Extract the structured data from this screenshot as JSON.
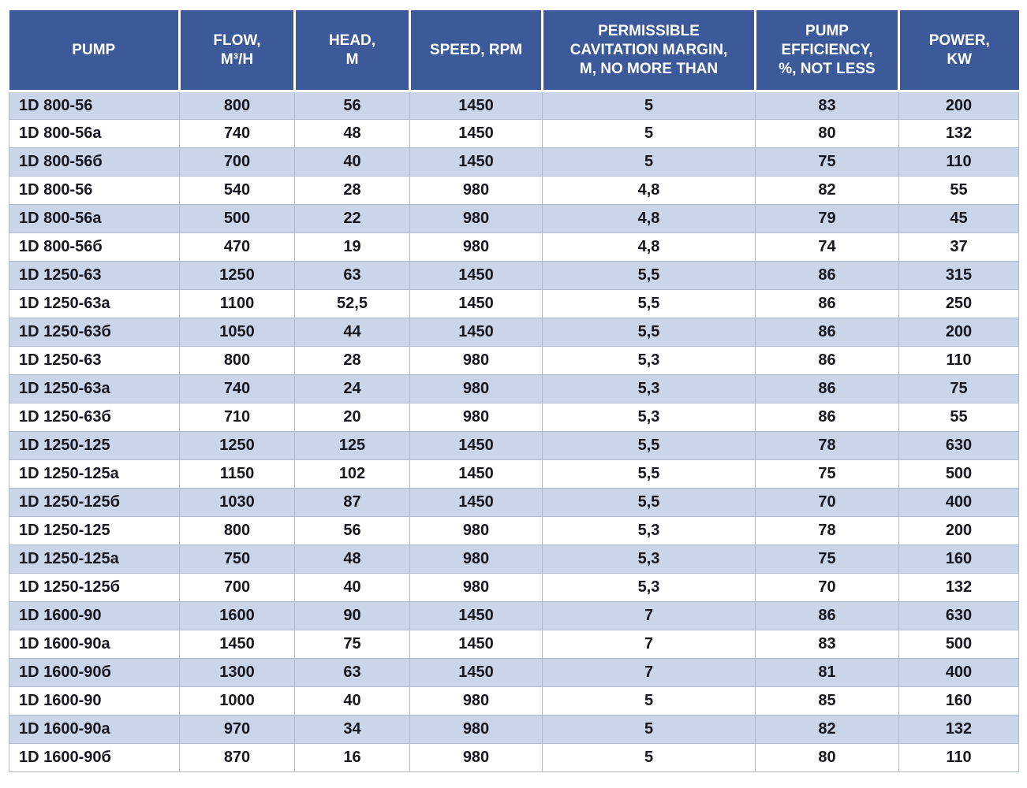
{
  "colors": {
    "header_bg": "#3C5A99",
    "header_text": "#FFFFFF",
    "row_alt_bg": "#CBD5E9",
    "row_bg": "#FFFFFF",
    "body_text": "#161620",
    "grid_line": "#AEBAD2"
  },
  "table": {
    "columns": [
      {
        "key": "pump",
        "label": "PUMP"
      },
      {
        "key": "flow",
        "label": "FLOW,\nM³/H"
      },
      {
        "key": "head",
        "label": "HEAD,\nM"
      },
      {
        "key": "speed",
        "label": "SPEED, RPM"
      },
      {
        "key": "cavitation",
        "label": "PERMISSIBLE\nCAVITATION MARGIN,\nM, NO MORE THAN"
      },
      {
        "key": "efficiency",
        "label": "PUMP\nEFFICIENCY,\n%, NOT LESS"
      },
      {
        "key": "power",
        "label": "POWER,\nKW"
      }
    ],
    "rows": [
      [
        "1D 800-56",
        "800",
        "56",
        "1450",
        "5",
        "83",
        "200"
      ],
      [
        "1D 800-56a",
        "740",
        "48",
        "1450",
        "5",
        "80",
        "132"
      ],
      [
        "1D 800-56б",
        "700",
        "40",
        "1450",
        "5",
        "75",
        "110"
      ],
      [
        "1D 800-56",
        "540",
        "28",
        "980",
        "4,8",
        "82",
        "55"
      ],
      [
        "1D 800-56a",
        "500",
        "22",
        "980",
        "4,8",
        "79",
        "45"
      ],
      [
        "1D 800-56б",
        "470",
        "19",
        "980",
        "4,8",
        "74",
        "37"
      ],
      [
        "1D 1250-63",
        "1250",
        "63",
        "1450",
        "5,5",
        "86",
        "315"
      ],
      [
        "1D 1250-63a",
        "1100",
        "52,5",
        "1450",
        "5,5",
        "86",
        "250"
      ],
      [
        "1D 1250-63б",
        "1050",
        "44",
        "1450",
        "5,5",
        "86",
        "200"
      ],
      [
        "1D 1250-63",
        "800",
        "28",
        "980",
        "5,3",
        "86",
        "110"
      ],
      [
        "1D 1250-63a",
        "740",
        "24",
        "980",
        "5,3",
        "86",
        "75"
      ],
      [
        "1D 1250-63б",
        "710",
        "20",
        "980",
        "5,3",
        "86",
        "55"
      ],
      [
        "1D 1250-125",
        "1250",
        "125",
        "1450",
        "5,5",
        "78",
        "630"
      ],
      [
        "1D 1250-125a",
        "1150",
        "102",
        "1450",
        "5,5",
        "75",
        "500"
      ],
      [
        "1D 1250-125б",
        "1030",
        "87",
        "1450",
        "5,5",
        "70",
        "400"
      ],
      [
        "1D 1250-125",
        "800",
        "56",
        "980",
        "5,3",
        "78",
        "200"
      ],
      [
        "1D 1250-125a",
        "750",
        "48",
        "980",
        "5,3",
        "75",
        "160"
      ],
      [
        "1D 1250-125б",
        "700",
        "40",
        "980",
        "5,3",
        "70",
        "132"
      ],
      [
        "1D 1600-90",
        "1600",
        "90",
        "1450",
        "7",
        "86",
        "630"
      ],
      [
        "1D 1600-90a",
        "1450",
        "75",
        "1450",
        "7",
        "83",
        "500"
      ],
      [
        "1D 1600-90б",
        "1300",
        "63",
        "1450",
        "7",
        "81",
        "400"
      ],
      [
        "1D 1600-90",
        "1000",
        "40",
        "980",
        "5",
        "85",
        "160"
      ],
      [
        "1D 1600-90a",
        "970",
        "34",
        "980",
        "5",
        "82",
        "132"
      ],
      [
        "1D 1600-90б",
        "870",
        "16",
        "980",
        "5",
        "80",
        "110"
      ]
    ]
  }
}
